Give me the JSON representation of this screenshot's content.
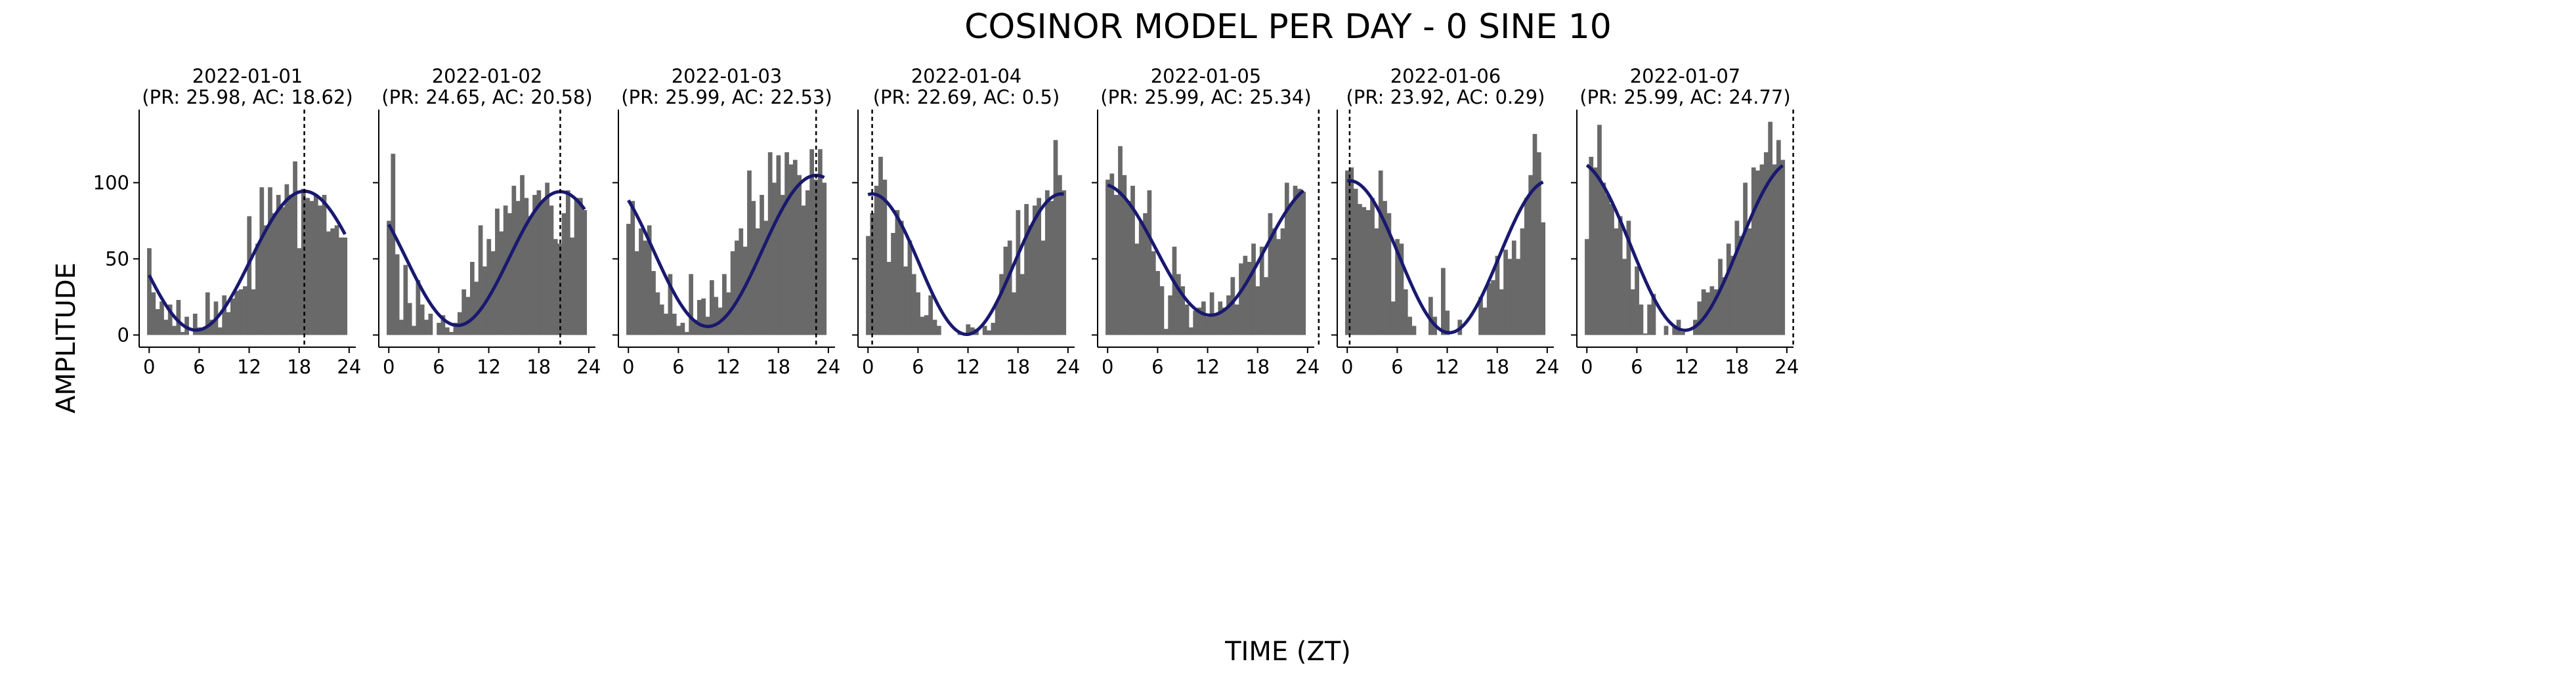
{
  "figure": {
    "title": "COSINOR MODEL PER DAY - 0 SINE 10",
    "xlabel": "TIME (ZT)",
    "ylabel": "AMPLITUDE"
  },
  "colors": {
    "bar": "#696969",
    "fit": "#191970",
    "axis": "#000000",
    "marker": "#000000"
  },
  "chart_data": [
    {
      "type": "bar",
      "date": "2022-01-01",
      "subtitle": "(PR: 25.98, AC: 18.62)",
      "xticks": [
        0,
        6,
        12,
        18,
        24
      ],
      "yticks": [
        0,
        50,
        100
      ],
      "xlim": [
        -1.2,
        24.8
      ],
      "ylim": [
        -8,
        148
      ],
      "bar_width": 0.5,
      "x": [
        0,
        0.5,
        1,
        1.5,
        2,
        2.5,
        3,
        3.5,
        4,
        4.5,
        5,
        5.5,
        6,
        6.5,
        7,
        7.5,
        8,
        8.5,
        9,
        9.5,
        10,
        10.5,
        11,
        11.5,
        12,
        12.5,
        13,
        13.5,
        14,
        14.5,
        15,
        15.5,
        16,
        16.5,
        17,
        17.5,
        18,
        18.5,
        19,
        19.5,
        20,
        20.5,
        21,
        21.5,
        22,
        22.5,
        23,
        23.5
      ],
      "values": [
        57,
        28,
        17,
        22,
        10,
        20,
        6,
        23,
        2,
        12,
        0,
        14,
        5,
        4,
        28,
        10,
        22,
        5,
        26,
        15,
        24,
        29,
        30,
        32,
        78,
        30,
        60,
        97,
        72,
        97,
        80,
        92,
        84,
        99,
        92,
        114,
        57,
        96,
        90,
        88,
        92,
        85,
        92,
        68,
        70,
        72,
        64,
        64
      ],
      "fit": {
        "mesor": 48.8,
        "amplitude": 45.6,
        "acrophase": 18.62,
        "period": 25.98
      },
      "acrophase_marker": 18.62
    },
    {
      "type": "bar",
      "date": "2022-01-02",
      "subtitle": "(PR: 24.65, AC: 20.58)",
      "xticks": [
        0,
        6,
        12,
        18,
        24
      ],
      "yticks": [
        0,
        50,
        100
      ],
      "xlim": [
        -1.2,
        24.8
      ],
      "ylim": [
        -8,
        148
      ],
      "bar_width": 0.5,
      "x": [
        0,
        0.5,
        1,
        1.5,
        2,
        2.5,
        3,
        3.5,
        4,
        4.5,
        5,
        5.5,
        6,
        6.5,
        7,
        7.5,
        8,
        8.5,
        9,
        9.5,
        10,
        10.5,
        11,
        11.5,
        12,
        12.5,
        13,
        13.5,
        14,
        14.5,
        15,
        15.5,
        16,
        16.5,
        17,
        17.5,
        18,
        18.5,
        19,
        19.5,
        20,
        20.5,
        21,
        21.5,
        22,
        22.5,
        23,
        23.5
      ],
      "values": [
        75,
        119,
        53,
        10,
        46,
        21,
        6,
        36,
        20,
        10,
        14,
        0,
        8,
        13,
        5,
        2,
        8,
        15,
        30,
        25,
        48,
        35,
        72,
        45,
        63,
        55,
        83,
        68,
        85,
        80,
        98,
        88,
        105,
        90,
        78,
        92,
        95,
        88,
        100,
        85,
        63,
        60,
        80,
        95,
        64,
        90,
        90,
        82
      ],
      "fit": {
        "mesor": 50.2,
        "amplitude": 43.9,
        "acrophase": 20.58,
        "period": 24.65
      },
      "acrophase_marker": 20.58
    },
    {
      "type": "bar",
      "date": "2022-01-03",
      "subtitle": "(PR: 25.99, AC: 22.53)",
      "xticks": [
        0,
        6,
        12,
        18,
        24
      ],
      "yticks": [
        0,
        50,
        100
      ],
      "xlim": [
        -1.2,
        24.8
      ],
      "ylim": [
        -8,
        148
      ],
      "bar_width": 0.5,
      "x": [
        0,
        0.5,
        1,
        1.5,
        2,
        2.5,
        3,
        3.5,
        4,
        4.5,
        5,
        5.5,
        6,
        6.5,
        7,
        7.5,
        8,
        8.5,
        9,
        9.5,
        10,
        10.5,
        11,
        11.5,
        12,
        12.5,
        13,
        13.5,
        14,
        14.5,
        15,
        15.5,
        16,
        16.5,
        17,
        17.5,
        18,
        18.5,
        19,
        19.5,
        20,
        20.5,
        21,
        21.5,
        22,
        22.5,
        23,
        23.5
      ],
      "values": [
        73,
        88,
        55,
        70,
        62,
        72,
        42,
        28,
        20,
        14,
        40,
        14,
        6,
        8,
        2,
        40,
        10,
        23,
        24,
        12,
        36,
        25,
        18,
        40,
        28,
        55,
        62,
        70,
        58,
        108,
        88,
        70,
        92,
        75,
        120,
        100,
        118,
        92,
        120,
        112,
        115,
        105,
        85,
        95,
        122,
        102,
        122,
        100
      ],
      "fit": {
        "mesor": 55.2,
        "amplitude": 49.6,
        "acrophase": 22.53,
        "period": 25.99
      },
      "acrophase_marker": 22.53
    },
    {
      "type": "bar",
      "date": "2022-01-04",
      "subtitle": "(PR: 22.69, AC: 0.5)",
      "xticks": [
        0,
        6,
        12,
        18,
        24
      ],
      "yticks": [
        0,
        50,
        100
      ],
      "xlim": [
        -1.2,
        24.8
      ],
      "ylim": [
        -8,
        148
      ],
      "bar_width": 0.5,
      "x": [
        0,
        0.5,
        1,
        1.5,
        2,
        2.5,
        3,
        3.5,
        4,
        4.5,
        5,
        5.5,
        6,
        6.5,
        7,
        7.5,
        8,
        8.5,
        9,
        9.5,
        10,
        10.5,
        11,
        11.5,
        12,
        12.5,
        13,
        13.5,
        14,
        14.5,
        15,
        15.5,
        16,
        16.5,
        17,
        17.5,
        18,
        18.5,
        19,
        19.5,
        20,
        20.5,
        21,
        21.5,
        22,
        22.5,
        23,
        23.5
      ],
      "values": [
        65,
        80,
        98,
        117,
        102,
        48,
        67,
        82,
        75,
        45,
        62,
        40,
        28,
        12,
        13,
        26,
        10,
        6,
        0,
        0,
        0,
        0,
        2,
        1,
        7,
        5,
        4,
        0,
        6,
        3,
        8,
        22,
        40,
        58,
        62,
        28,
        82,
        40,
        86,
        72,
        85,
        90,
        62,
        95,
        88,
        128,
        105,
        95
      ],
      "fit": {
        "mesor": 46.5,
        "amplitude": 46.1,
        "acrophase": 0.5,
        "period": 22.69
      },
      "acrophase_marker": 0.5
    },
    {
      "type": "bar",
      "date": "2022-01-05",
      "subtitle": "(PR: 25.99, AC: 25.34)",
      "xticks": [
        0,
        6,
        12,
        18,
        24
      ],
      "yticks": [
        0,
        50,
        100
      ],
      "xlim": [
        -1.2,
        24.8
      ],
      "ylim": [
        -8,
        148
      ],
      "bar_width": 0.5,
      "x": [
        0,
        0.5,
        1,
        1.5,
        2,
        2.5,
        3,
        3.5,
        4,
        4.5,
        5,
        5.5,
        6,
        6.5,
        7,
        7.5,
        8,
        8.5,
        9,
        9.5,
        10,
        10.5,
        11,
        11.5,
        12,
        12.5,
        13,
        13.5,
        14,
        14.5,
        15,
        15.5,
        16,
        16.5,
        17,
        17.5,
        18,
        18.5,
        19,
        19.5,
        20,
        20.5,
        21,
        21.5,
        22,
        22.5,
        23,
        23.5
      ],
      "values": [
        102,
        106,
        92,
        124,
        105,
        88,
        98,
        60,
        75,
        80,
        95,
        55,
        42,
        32,
        4,
        26,
        58,
        40,
        32,
        20,
        5,
        16,
        18,
        22,
        12,
        28,
        13,
        22,
        18,
        26,
        38,
        20,
        47,
        52,
        48,
        60,
        32,
        58,
        38,
        80,
        70,
        63,
        70,
        100,
        86,
        98,
        96,
        94
      ],
      "fit": {
        "mesor": 56.0,
        "amplitude": 43.0,
        "acrophase": 25.34,
        "period": 25.99
      },
      "acrophase_marker": 25.34
    },
    {
      "type": "bar",
      "date": "2022-01-06",
      "subtitle": "(PR: 23.92, AC: 0.29)",
      "xticks": [
        0,
        6,
        12,
        18,
        24
      ],
      "yticks": [
        0,
        50,
        100
      ],
      "xlim": [
        -1.2,
        24.8
      ],
      "ylim": [
        -8,
        148
      ],
      "bar_width": 0.5,
      "x": [
        0,
        0.5,
        1,
        1.5,
        2,
        2.5,
        3,
        3.5,
        4,
        4.5,
        5,
        5.5,
        6,
        6.5,
        7,
        7.5,
        8,
        8.5,
        9,
        9.5,
        10,
        10.5,
        11,
        11.5,
        12,
        12.5,
        13,
        13.5,
        14,
        14.5,
        15,
        15.5,
        16,
        16.5,
        17,
        17.5,
        18,
        18.5,
        19,
        19.5,
        20,
        20.5,
        21,
        21.5,
        22,
        22.5,
        23,
        23.5
      ],
      "values": [
        108,
        110,
        96,
        86,
        84,
        82,
        90,
        70,
        108,
        88,
        80,
        22,
        63,
        60,
        30,
        12,
        6,
        0,
        0,
        0,
        25,
        12,
        0,
        44,
        16,
        0,
        0,
        10,
        0,
        0,
        0,
        0,
        25,
        18,
        34,
        36,
        52,
        30,
        56,
        50,
        62,
        50,
        70,
        90,
        105,
        132,
        120,
        74
      ],
      "fit": {
        "mesor": 51.4,
        "amplitude": 49.9,
        "acrophase": 0.29,
        "period": 23.92
      },
      "acrophase_marker": 0.29
    },
    {
      "type": "bar",
      "date": "2022-01-07",
      "subtitle": "(PR: 25.99, AC: 24.77)",
      "xticks": [
        0,
        6,
        12,
        18,
        24
      ],
      "yticks": [
        0,
        50,
        100
      ],
      "xlim": [
        -1.2,
        24.8
      ],
      "ylim": [
        -8,
        148
      ],
      "bar_width": 0.5,
      "x": [
        0,
        0.5,
        1,
        1.5,
        2,
        2.5,
        3,
        3.5,
        4,
        4.5,
        5,
        5.5,
        6,
        6.5,
        7,
        7.5,
        8,
        8.5,
        9,
        9.5,
        10,
        10.5,
        11,
        11.5,
        12,
        12.5,
        13,
        13.5,
        14,
        14.5,
        15,
        15.5,
        16,
        16.5,
        17,
        17.5,
        18,
        18.5,
        19,
        19.5,
        20,
        20.5,
        21,
        21.5,
        22,
        22.5,
        23,
        23.5
      ],
      "values": [
        63,
        117,
        110,
        138,
        100,
        92,
        86,
        70,
        78,
        50,
        75,
        30,
        45,
        20,
        1,
        20,
        27,
        0,
        0,
        6,
        0,
        6,
        10,
        2,
        0,
        0,
        10,
        22,
        30,
        28,
        32,
        30,
        50,
        38,
        60,
        52,
        75,
        65,
        100,
        70,
        110,
        108,
        112,
        120,
        140,
        112,
        128,
        115
      ],
      "fit": {
        "mesor": 58.5,
        "amplitude": 55.4,
        "acrophase": 24.77,
        "period": 25.99
      },
      "acrophase_marker": 24.77
    }
  ]
}
